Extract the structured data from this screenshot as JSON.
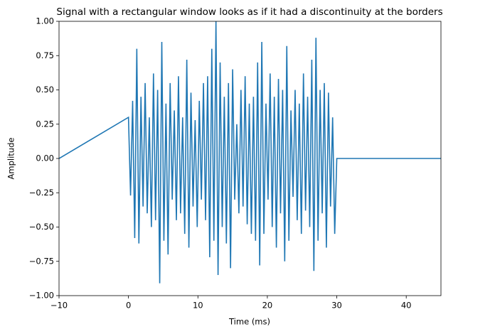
{
  "chart_data": {
    "type": "line",
    "title": "Signal with a rectangular window looks as if it had a discontinuity at the borders",
    "xlabel": "Time (ms)",
    "ylabel": "Amplitude",
    "color": "#1f77b4",
    "x": [
      -10,
      0,
      0.3,
      0.6,
      0.9,
      1.2,
      1.5,
      1.8,
      2.1,
      2.4,
      2.7,
      3,
      3.3,
      3.6,
      3.9,
      4.2,
      4.5,
      4.8,
      5.1,
      5.4,
      5.7,
      6,
      6.3,
      6.6,
      6.9,
      7.2,
      7.5,
      7.8,
      8.1,
      8.4,
      8.7,
      9,
      9.3,
      9.6,
      9.9,
      10.2,
      10.5,
      10.8,
      11.1,
      11.4,
      11.7,
      12,
      12.3,
      12.6,
      12.9,
      13.2,
      13.5,
      13.8,
      14.1,
      14.4,
      14.7,
      15,
      15.3,
      15.6,
      15.9,
      16.2,
      16.5,
      16.8,
      17.1,
      17.4,
      17.7,
      18,
      18.3,
      18.6,
      18.9,
      19.2,
      19.5,
      19.8,
      20.1,
      20.4,
      20.7,
      21,
      21.3,
      21.6,
      21.9,
      22.2,
      22.5,
      22.8,
      23.1,
      23.4,
      23.7,
      24,
      24.3,
      24.6,
      24.9,
      25.2,
      25.5,
      25.8,
      26.1,
      26.4,
      26.7,
      27,
      27.3,
      27.6,
      27.9,
      28.2,
      28.5,
      28.8,
      29.1,
      29.4,
      29.7,
      30,
      45
    ],
    "values": [
      0,
      0.3,
      -0.27,
      0.42,
      -0.58,
      0.8,
      -0.62,
      0.45,
      -0.35,
      0.55,
      -0.4,
      0.3,
      -0.5,
      0.62,
      -0.45,
      0.5,
      -0.91,
      0.85,
      -0.6,
      0.4,
      -0.7,
      0.55,
      -0.3,
      0.35,
      -0.45,
      0.6,
      -0.4,
      0.3,
      -0.55,
      0.72,
      -0.65,
      0.48,
      -0.35,
      0.28,
      -0.5,
      0.42,
      -0.3,
      0.55,
      -0.45,
      0.6,
      -0.72,
      0.8,
      -0.6,
      1.0,
      -0.85,
      0.7,
      -0.5,
      0.45,
      -0.62,
      0.55,
      -0.8,
      0.65,
      -0.3,
      0.25,
      -0.4,
      0.5,
      -0.35,
      0.6,
      -0.48,
      0.4,
      -0.55,
      0.45,
      -0.6,
      0.7,
      -0.78,
      0.85,
      -0.55,
      0.4,
      -0.3,
      0.62,
      -0.5,
      0.45,
      -0.65,
      0.58,
      -0.4,
      0.5,
      -0.75,
      0.82,
      -0.6,
      0.35,
      -0.28,
      0.5,
      -0.45,
      0.4,
      -0.55,
      0.62,
      -0.38,
      0.45,
      -0.5,
      0.72,
      -0.82,
      0.88,
      -0.6,
      0.5,
      -0.4,
      0.55,
      -0.65,
      0.48,
      -0.35,
      0.3,
      -0.55,
      0,
      0
    ],
    "xlim": [
      -10,
      45
    ],
    "xticks": [
      {
        "value": -10,
        "label": "−10"
      },
      0,
      10,
      20,
      30,
      40
    ],
    "ylim": [
      -1,
      1
    ],
    "yticks": [
      {
        "value": -1,
        "label": "−1.00"
      },
      {
        "value": -0.75,
        "label": "−0.75"
      },
      {
        "value": -0.5,
        "label": "−0.50"
      },
      {
        "value": -0.25,
        "label": "−0.25"
      },
      {
        "value": 0,
        "label": "0.00"
      },
      {
        "value": 0.25,
        "label": "0.25"
      },
      {
        "value": 0.5,
        "label": "0.50"
      },
      {
        "value": 0.75,
        "label": "0.75"
      },
      {
        "value": 1,
        "label": "1.00"
      }
    ],
    "grid": false
  }
}
